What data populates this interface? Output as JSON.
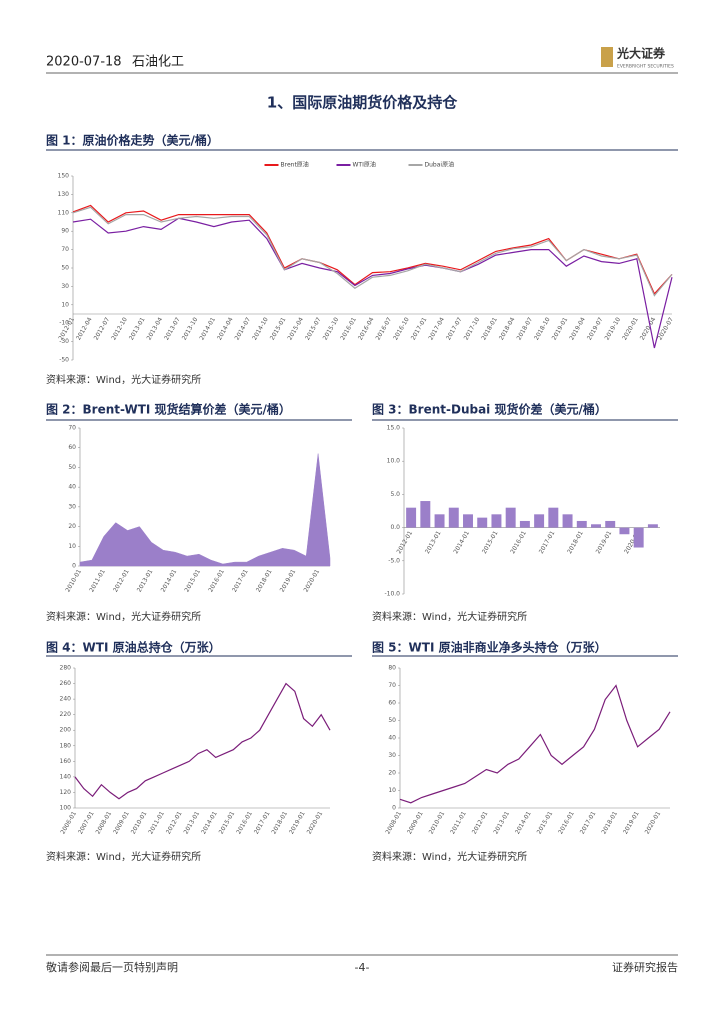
{
  "header": {
    "date": "2020-07-18",
    "sector": "石油化工",
    "logo": "光大证券",
    "logo_en": "EVERBRIGHT SECURITIES"
  },
  "section_title": "1、国际原油期货价格及持仓",
  "chart_data": [
    {
      "type": "line",
      "title": "图 1：原油价格走势（美元/桶）",
      "source": "资料来源：Wind，光大证券研究所",
      "categories": [
        "2012-01",
        "2012-04",
        "2012-07",
        "2012-10",
        "2013-01",
        "2013-04",
        "2013-07",
        "2013-10",
        "2014-01",
        "2014-04",
        "2014-07",
        "2014-10",
        "2015-01",
        "2015-04",
        "2015-07",
        "2015-10",
        "2016-01",
        "2016-04",
        "2016-07",
        "2016-10",
        "2017-01",
        "2017-04",
        "2017-07",
        "2017-10",
        "2018-01",
        "2018-04",
        "2018-07",
        "2018-10",
        "2019-01",
        "2019-04",
        "2019-07",
        "2019-10",
        "2020-01",
        "2020-04",
        "2020-07"
      ],
      "series": [
        {
          "name": "Brent原油",
          "color": "#e8191c",
          "values": [
            111,
            118,
            100,
            110,
            112,
            102,
            108,
            108,
            108,
            108,
            108,
            88,
            50,
            60,
            56,
            48,
            32,
            45,
            46,
            50,
            55,
            52,
            48,
            58,
            68,
            72,
            75,
            82,
            58,
            70,
            65,
            60,
            65,
            22,
            43
          ]
        },
        {
          "name": "WTI原油",
          "color": "#7a1fa2",
          "values": [
            100,
            103,
            88,
            90,
            95,
            92,
            104,
            100,
            95,
            100,
            102,
            82,
            48,
            55,
            50,
            46,
            31,
            42,
            44,
            49,
            53,
            50,
            46,
            54,
            64,
            67,
            70,
            70,
            52,
            63,
            57,
            55,
            60,
            -37,
            40
          ]
        },
        {
          "name": "Dubai原油",
          "color": "#a6a6a6",
          "values": [
            110,
            116,
            98,
            108,
            108,
            100,
            104,
            106,
            104,
            106,
            106,
            86,
            48,
            60,
            56,
            44,
            28,
            40,
            42,
            47,
            54,
            50,
            46,
            56,
            66,
            71,
            73,
            80,
            58,
            70,
            63,
            60,
            64,
            20,
            43
          ]
        }
      ],
      "ylim": [
        -50,
        150
      ],
      "yticks": [
        150,
        130,
        110,
        90,
        70,
        50,
        30,
        10,
        -10,
        -30,
        -50
      ],
      "legend": "top"
    },
    {
      "type": "area",
      "title": "图 2：Brent-WTI 现货结算价差（美元/桶）",
      "source": "资料来源：Wind，光大证券研究所",
      "color": "#9b7fc9",
      "categories": [
        "2010-01",
        null,
        "2011-01",
        null,
        "2012-01",
        null,
        "2013-01",
        null,
        "2014-01",
        null,
        "2015-01",
        null,
        "2016-01",
        null,
        "2017-01",
        null,
        "2018-01",
        null,
        "2019-01",
        null,
        "2020-01",
        null
      ],
      "values": [
        2,
        3,
        15,
        22,
        18,
        20,
        12,
        8,
        7,
        5,
        6,
        3,
        1,
        2,
        2,
        5,
        7,
        9,
        8,
        5,
        57,
        4
      ],
      "ylim": [
        0,
        70
      ],
      "yticks": [
        70,
        60,
        50,
        40,
        30,
        20,
        10,
        0
      ]
    },
    {
      "type": "bar",
      "title": "图 3：Brent-Dubai 现货价差（美元/桶）",
      "source": "资料来源：Wind，光大证券研究所",
      "color": "#9b7fc9",
      "categories": [
        "2012-01",
        null,
        "2013-01",
        null,
        "2014-01",
        null,
        "2015-01",
        null,
        "2016-01",
        null,
        "2017-01",
        null,
        "2018-01",
        null,
        "2019-01",
        null,
        "2020-01",
        null
      ],
      "values": [
        3,
        4,
        2,
        3,
        2,
        1.5,
        2,
        3,
        1,
        2,
        3,
        2,
        1,
        0.5,
        1,
        -1,
        -3,
        0.5
      ],
      "ylim": [
        -10,
        15
      ],
      "yticks": [
        {
          "value": 15,
          "label": "15.0"
        },
        {
          "value": 10,
          "label": "10.0"
        },
        {
          "value": 5,
          "label": "5.0"
        },
        {
          "value": 0,
          "label": "0.0"
        },
        {
          "value": -5,
          "label": "-5.0"
        },
        {
          "value": -10,
          "label": "-10.0"
        }
      ]
    },
    {
      "type": "line",
      "title": "图 4：WTI 原油总持仓（万张）",
      "source": "资料来源：Wind，光大证券研究所",
      "categories": [
        "2006-01",
        null,
        "2007-01",
        null,
        "2008-01",
        null,
        "2009-01",
        null,
        "2010-01",
        null,
        "2011-01",
        null,
        "2012-01",
        null,
        "2013-01",
        null,
        "2014-01",
        null,
        "2015-01",
        null,
        "2016-01",
        null,
        "2017-01",
        null,
        "2018-01",
        null,
        "2019-01",
        null,
        "2020-01",
        null
      ],
      "series": [
        {
          "name": null,
          "color": "#7b1e7a",
          "values": [
            140,
            125,
            115,
            130,
            120,
            112,
            120,
            125,
            135,
            140,
            145,
            150,
            155,
            160,
            170,
            175,
            165,
            170,
            175,
            185,
            190,
            200,
            220,
            240,
            260,
            250,
            215,
            205,
            220,
            200
          ]
        }
      ],
      "ylim": [
        100,
        280
      ],
      "yticks": [
        280,
        260,
        240,
        220,
        200,
        180,
        160,
        140,
        120,
        100
      ]
    },
    {
      "type": "line",
      "title": "图 5：WTI 原油非商业净多头持仓（万张）",
      "source": "资料来源：Wind，光大证券研究所",
      "categories": [
        "2008-01",
        null,
        "2009-01",
        null,
        "2010-01",
        null,
        "2011-01",
        null,
        "2012-01",
        null,
        "2013-01",
        null,
        "2014-01",
        null,
        "2015-01",
        null,
        "2016-01",
        null,
        "2017-01",
        null,
        "2018-01",
        null,
        "2019-01",
        null,
        "2020-01",
        null
      ],
      "series": [
        {
          "name": null,
          "color": "#7b1e7a",
          "values": [
            5,
            3,
            6,
            8,
            10,
            12,
            14,
            18,
            22,
            20,
            25,
            28,
            35,
            42,
            30,
            25,
            30,
            35,
            45,
            62,
            70,
            50,
            35,
            40,
            45,
            55
          ]
        }
      ],
      "ylim": [
        0,
        80
      ],
      "yticks": [
        80,
        70,
        60,
        50,
        40,
        30,
        20,
        10,
        0
      ]
    }
  ],
  "footer": {
    "left": "敬请参阅最后一页特别声明",
    "page": "-4-",
    "right": "证券研究报告"
  }
}
